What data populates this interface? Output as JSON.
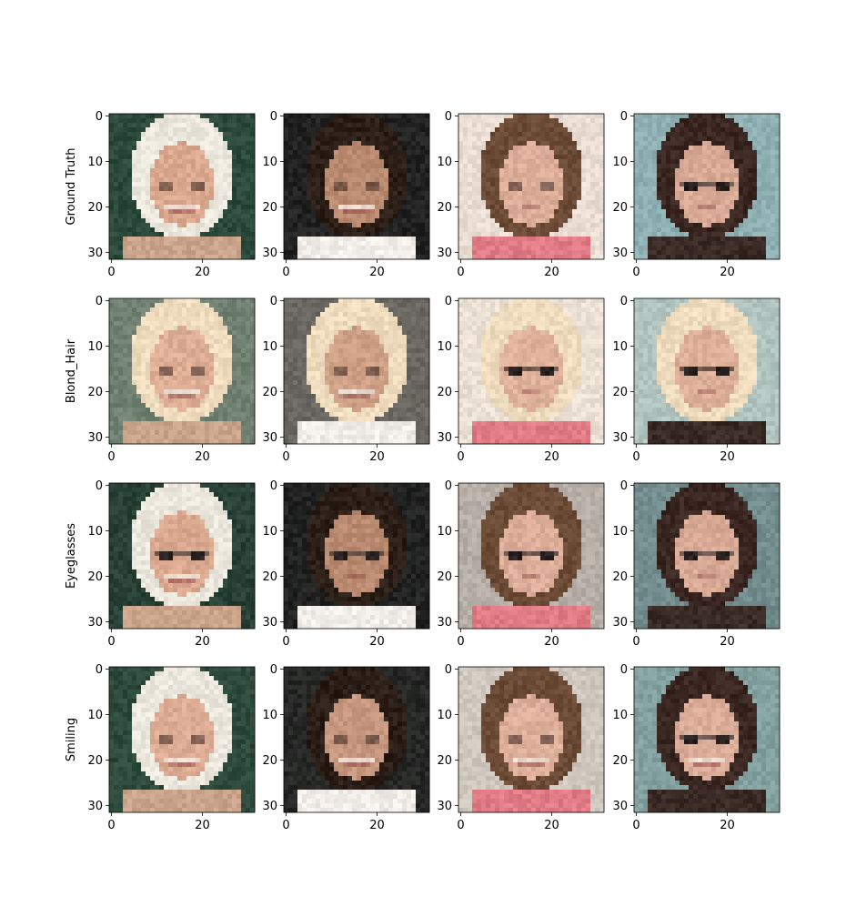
{
  "chart_data": {
    "type": "image-grid",
    "rows": [
      "Ground Truth",
      "Blond_Hair",
      "Eyeglasses",
      "Smiling"
    ],
    "columns": 4,
    "image_size": [
      32,
      32
    ],
    "x_ticks": [
      0,
      20
    ],
    "y_ticks": [
      0,
      10,
      20,
      30
    ],
    "x_tick_labels": [
      "0",
      "20"
    ],
    "y_tick_labels": [
      "0",
      "10",
      "20",
      "30"
    ],
    "xlim": [
      -0.5,
      31.5
    ],
    "ylim": [
      31.5,
      -0.5
    ],
    "samples": [
      {
        "bg": "#2b4a3c",
        "hair": "#ece7dc",
        "skin": "#d9a88e",
        "shirt": "#c9a48a",
        "glasses": false,
        "smile": true
      },
      {
        "bg": "#222222",
        "hair": "#2a1e17",
        "skin": "#b98a6f",
        "shirt": "#f0ece8",
        "glasses": false,
        "smile": true
      },
      {
        "bg": "#e9ddd4",
        "hair": "#6b4a36",
        "skin": "#dcae99",
        "shirt": "#e07a84",
        "glasses": false,
        "smile": false
      },
      {
        "bg": "#8fb0b2",
        "hair": "#3b2722",
        "skin": "#d7a994",
        "shirt": "#3a2a26",
        "glasses": true,
        "smile": false
      }
    ],
    "variant_colors": [
      {
        "bg": "#2b4a3c",
        "hair": "#ece7dc",
        "skin": "#d9a88e",
        "shirt": "#c9a48a"
      },
      {
        "bg": "#f0e6d6",
        "hair": "#efdcbf",
        "skin": "#e2b59c",
        "shirt": "#dcbfa6"
      },
      {
        "bg": "#1f2624",
        "hair": "#d8d0c2",
        "skin": "#c99f86",
        "shirt": "#ddd2c8"
      },
      {
        "bg": "#2a3a30",
        "hair": "#e3d6c1",
        "skin": "#dcb09a",
        "shirt": "#d7b8a2"
      }
    ]
  }
}
